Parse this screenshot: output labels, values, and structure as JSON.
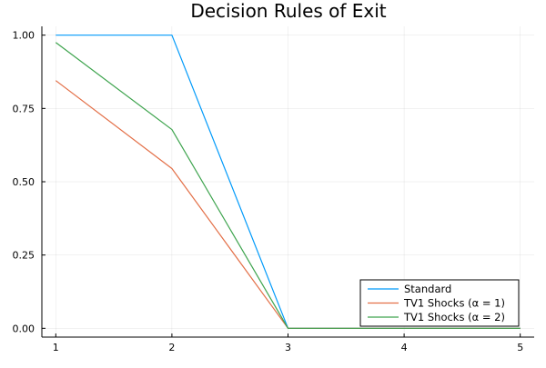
{
  "chart_data": {
    "type": "line",
    "title": "Decision Rules of Exit",
    "xlabel": "",
    "ylabel": "",
    "x": [
      1,
      2,
      3,
      4,
      5
    ],
    "xlim": [
      0.88,
      5.12
    ],
    "ylim": [
      -0.03,
      1.03
    ],
    "xticks": [
      1,
      2,
      3,
      4,
      5
    ],
    "yticks": [
      0,
      0.25,
      0.5,
      0.75,
      1.0
    ],
    "ytick_labels": [
      "0.00",
      "0.25",
      "0.50",
      "0.75",
      "1.00"
    ],
    "grid": true,
    "legend_position": "bottom-right",
    "series": [
      {
        "name": "Standard",
        "color": "#009AFA",
        "values": [
          1.0,
          1.0,
          0.0,
          0.0,
          0.0
        ]
      },
      {
        "name": "TV1 Shocks (α = 1)",
        "color": "#E36F47",
        "values": [
          0.845,
          0.545,
          0.0,
          0.0,
          0.0
        ]
      },
      {
        "name": "TV1 Shocks (α = 2)",
        "color": "#3EA44E",
        "values": [
          0.975,
          0.678,
          0.0,
          0.0,
          0.0
        ]
      }
    ]
  }
}
